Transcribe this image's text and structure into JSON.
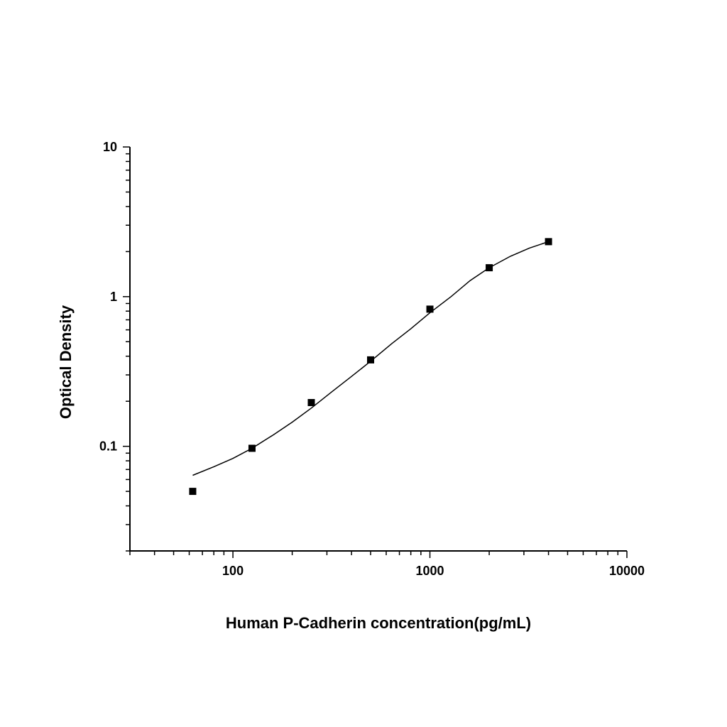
{
  "chart_data": {
    "type": "scatter",
    "xlabel": "Human P-Cadherin concentration(pg/mL)",
    "ylabel": "Optical Density",
    "x_scale": "log",
    "y_scale": "log",
    "xlim": [
      30,
      10000
    ],
    "ylim": [
      0.02,
      10
    ],
    "x_ticks": [
      100,
      1000,
      10000
    ],
    "x_tick_labels": [
      "100",
      "1000",
      "10000"
    ],
    "y_ticks": [
      0.1,
      1,
      10
    ],
    "y_tick_labels": [
      "0.1",
      "1",
      "10"
    ],
    "grid": false,
    "series": [
      {
        "points": [
          {
            "x": 62.5,
            "y": 0.05
          },
          {
            "x": 125,
            "y": 0.097
          },
          {
            "x": 250,
            "y": 0.196
          },
          {
            "x": 500,
            "y": 0.378
          },
          {
            "x": 1000,
            "y": 0.825
          },
          {
            "x": 2000,
            "y": 1.56
          },
          {
            "x": 4000,
            "y": 2.33
          }
        ]
      }
    ],
    "fit_curve": [
      {
        "x": 62.5,
        "y": 0.064
      },
      {
        "x": 80,
        "y": 0.073
      },
      {
        "x": 100,
        "y": 0.083
      },
      {
        "x": 125,
        "y": 0.097
      },
      {
        "x": 160,
        "y": 0.119
      },
      {
        "x": 200,
        "y": 0.145
      },
      {
        "x": 250,
        "y": 0.18
      },
      {
        "x": 320,
        "y": 0.233
      },
      {
        "x": 400,
        "y": 0.293
      },
      {
        "x": 500,
        "y": 0.37
      },
      {
        "x": 640,
        "y": 0.485
      },
      {
        "x": 800,
        "y": 0.61
      },
      {
        "x": 1000,
        "y": 0.78
      },
      {
        "x": 1280,
        "y": 1.0
      },
      {
        "x": 1600,
        "y": 1.28
      },
      {
        "x": 2000,
        "y": 1.56
      },
      {
        "x": 2560,
        "y": 1.86
      },
      {
        "x": 3200,
        "y": 2.11
      },
      {
        "x": 4000,
        "y": 2.33
      }
    ]
  }
}
